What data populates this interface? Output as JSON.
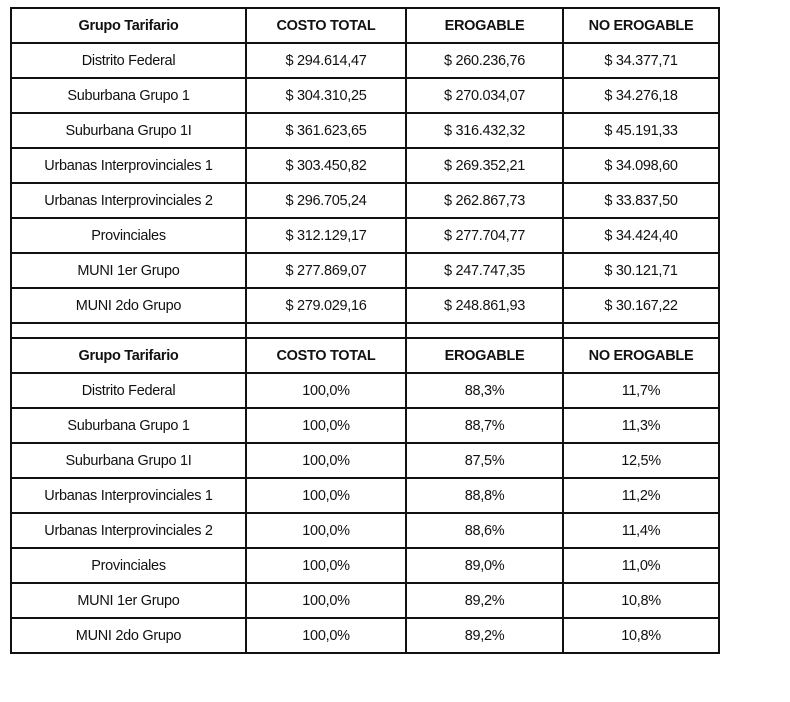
{
  "headers": [
    "Grupo Tarifario",
    "COSTO TOTAL",
    "EROGABLE",
    "NO EROGABLE"
  ],
  "costs": [
    [
      "Distrito Federal",
      "$ 294.614,47",
      "$ 260.236,76",
      "$ 34.377,71"
    ],
    [
      "Suburbana Grupo 1",
      "$ 304.310,25",
      "$ 270.034,07",
      "$ 34.276,18"
    ],
    [
      "Suburbana Grupo 1I",
      "$ 361.623,65",
      "$ 316.432,32",
      "$ 45.191,33"
    ],
    [
      "Urbanas Interprovinciales 1",
      "$ 303.450,82",
      "$ 269.352,21",
      "$ 34.098,60"
    ],
    [
      "Urbanas Interprovinciales 2",
      "$ 296.705,24",
      "$ 262.867,73",
      "$ 33.837,50"
    ],
    [
      "Provinciales",
      "$ 312.129,17",
      "$ 277.704,77",
      "$ 34.424,40"
    ],
    [
      "MUNI 1er Grupo",
      "$ 277.869,07",
      "$ 247.747,35",
      "$ 30.121,71"
    ],
    [
      "MUNI 2do Grupo",
      "$ 279.029,16",
      "$ 248.861,93",
      "$ 30.167,22"
    ]
  ],
  "percentages": [
    [
      "Distrito Federal",
      "100,0%",
      "88,3%",
      "11,7%"
    ],
    [
      "Suburbana Grupo 1",
      "100,0%",
      "88,7%",
      "11,3%"
    ],
    [
      "Suburbana Grupo 1I",
      "100,0%",
      "87,5%",
      "12,5%"
    ],
    [
      "Urbanas Interprovinciales 1",
      "100,0%",
      "88,8%",
      "11,2%"
    ],
    [
      "Urbanas Interprovinciales 2",
      "100,0%",
      "88,6%",
      "11,4%"
    ],
    [
      "Provinciales",
      "100,0%",
      "89,0%",
      "11,0%"
    ],
    [
      "MUNI 1er Grupo",
      "100,0%",
      "89,2%",
      "10,8%"
    ],
    [
      "MUNI 2do Grupo",
      "100,0%",
      "89,2%",
      "10,8%"
    ]
  ]
}
